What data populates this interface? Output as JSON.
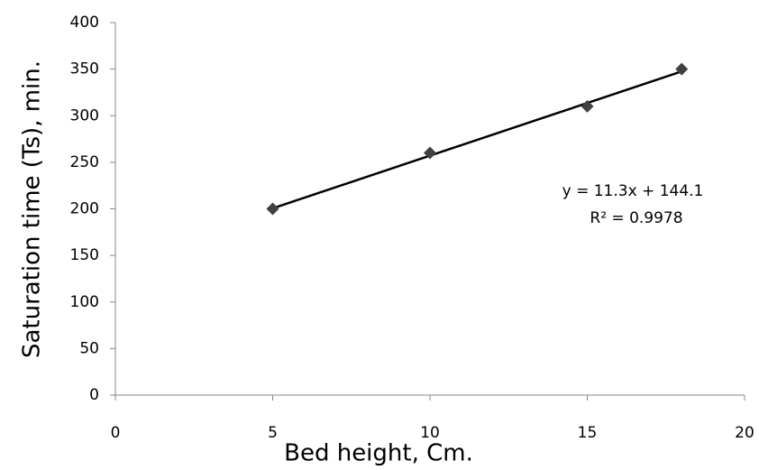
{
  "chart_data": {
    "type": "scatter",
    "x": [
      5,
      10,
      15,
      18
    ],
    "values": [
      200,
      260,
      310,
      350
    ],
    "color": "#404040",
    "trendline": {
      "x": [
        5,
        18
      ],
      "values": [
        200.6,
        347.5
      ],
      "color": "#000000"
    },
    "equation": "y = 11.3x + 144.1",
    "r_squared": "R² = 0.9978",
    "xlabel": "Bed height, Cm.",
    "ylabel": "Saturation time (Ts), min.",
    "xlim": [
      0,
      20
    ],
    "ylim": [
      0,
      400
    ],
    "xticks": [
      0,
      5,
      10,
      15,
      20
    ],
    "yticks": [
      0,
      50,
      100,
      150,
      200,
      250,
      300,
      350,
      400
    ],
    "grid": false
  }
}
